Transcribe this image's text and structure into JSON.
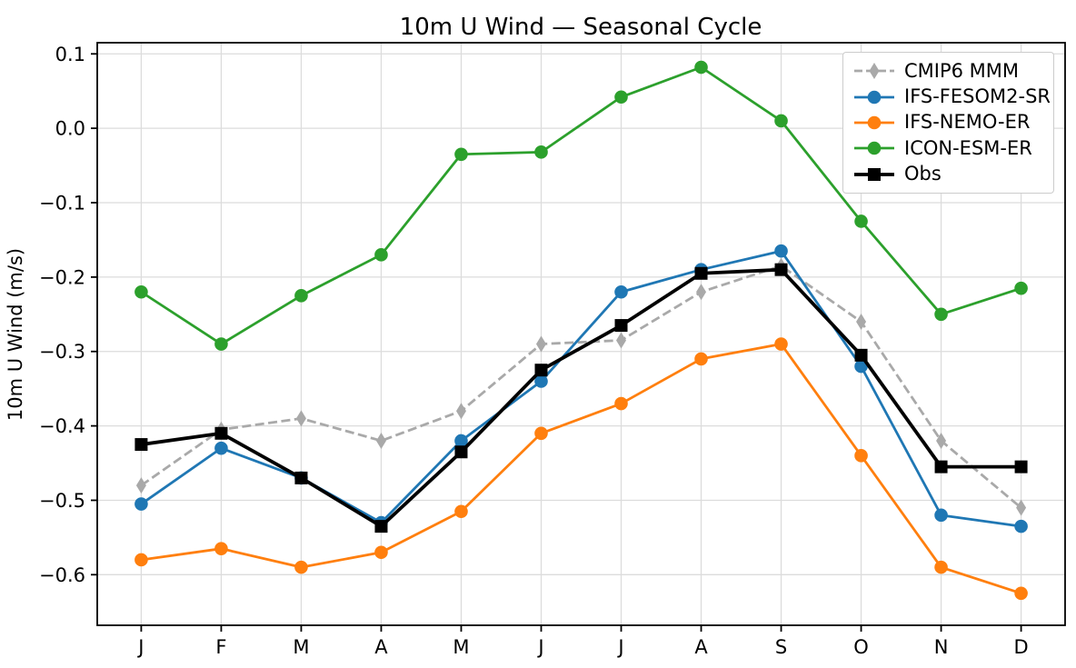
{
  "chart_data": {
    "type": "line",
    "title": "10m U Wind — Seasonal Cycle",
    "xlabel": "",
    "ylabel": "10m U Wind (m/s)",
    "categories": [
      "J",
      "F",
      "M",
      "A",
      "M",
      "J",
      "J",
      "A",
      "S",
      "O",
      "N",
      "D"
    ],
    "yticks": [
      0.1,
      0.0,
      -0.1,
      -0.2,
      -0.3,
      -0.4,
      -0.5,
      -0.6
    ],
    "ylim": [
      -0.668,
      0.115
    ],
    "grid": true,
    "legend_position": "upper right",
    "colors": {
      "grid": "#dcdcdc",
      "spine": "#000000",
      "background": "#ffffff"
    },
    "series": [
      {
        "name": "CMIP6 MMM",
        "color": "#a9a9a9",
        "line_style": "dashed",
        "marker": "thin-diamond",
        "line_width": 2.8,
        "values": [
          -0.48,
          -0.405,
          -0.39,
          -0.42,
          -0.38,
          -0.29,
          -0.285,
          -0.22,
          -0.185,
          -0.26,
          -0.42,
          -0.51
        ]
      },
      {
        "name": "IFS-FESOM2-SR",
        "color": "#1f77b4",
        "line_style": "solid",
        "marker": "circle",
        "line_width": 2.8,
        "values": [
          -0.505,
          -0.43,
          -0.47,
          -0.53,
          -0.42,
          -0.34,
          -0.22,
          -0.19,
          -0.165,
          -0.32,
          -0.52,
          -0.535
        ]
      },
      {
        "name": "IFS-NEMO-ER",
        "color": "#ff7f0e",
        "line_style": "solid",
        "marker": "circle",
        "line_width": 2.8,
        "values": [
          -0.58,
          -0.565,
          -0.59,
          -0.57,
          -0.515,
          -0.41,
          -0.37,
          -0.31,
          -0.29,
          -0.44,
          -0.59,
          -0.625
        ]
      },
      {
        "name": "ICON-ESM-ER",
        "color": "#2ca02c",
        "line_style": "solid",
        "marker": "circle",
        "line_width": 2.8,
        "values": [
          -0.22,
          -0.29,
          -0.225,
          -0.17,
          -0.035,
          -0.032,
          0.042,
          0.082,
          0.01,
          -0.125,
          -0.25,
          -0.215
        ]
      },
      {
        "name": "Obs",
        "color": "#000000",
        "line_style": "solid",
        "marker": "square",
        "line_width": 3.8,
        "values": [
          -0.425,
          -0.41,
          -0.47,
          -0.535,
          -0.435,
          -0.325,
          -0.265,
          -0.195,
          -0.19,
          -0.305,
          -0.455,
          -0.455
        ]
      }
    ]
  }
}
